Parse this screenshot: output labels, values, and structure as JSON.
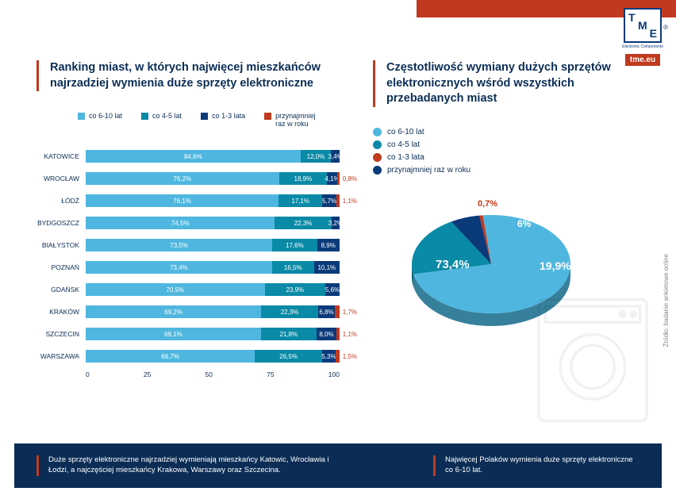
{
  "logo": {
    "letters": [
      "T",
      "M",
      "E"
    ],
    "sub": "Electronic Components",
    "reg": "®",
    "link": "tme.eu"
  },
  "colors": {
    "c610": "#4fb7df",
    "c45": "#0a8aa6",
    "c13": "#0a3a7a",
    "cyr": "#c1391e",
    "title": "#0b2d55",
    "footer_bg": "#0b2d55",
    "grey": "#939393"
  },
  "left": {
    "title": "Ranking miast, w których najwięcej mieszkańców najrzadziej wymienia duże sprzęty elektroniczne",
    "legend": [
      {
        "label": "co 6-10 lat",
        "c": "c610"
      },
      {
        "label": "co 4-5 lat",
        "c": "c45"
      },
      {
        "label": "co 1-3 lata",
        "c": "c13"
      },
      {
        "label": "przynajmniej\nraz w roku",
        "c": "cyr"
      }
    ],
    "rows": [
      {
        "city": "KATOWICE",
        "v": [
          84.6,
          12.0,
          3.4,
          0
        ],
        "extra": ""
      },
      {
        "city": "WROCŁAW",
        "v": [
          76.2,
          18.9,
          4.1,
          0.8
        ],
        "extra": "0,8%"
      },
      {
        "city": "ŁÓDŹ",
        "v": [
          76.1,
          17.1,
          5.7,
          1.1
        ],
        "extra": "1,1%"
      },
      {
        "city": "BYDGOSZCZ",
        "v": [
          74.5,
          22.3,
          3.2,
          0
        ],
        "extra": ""
      },
      {
        "city": "BIAŁYSTOK",
        "v": [
          73.5,
          17.6,
          8.9,
          0
        ],
        "extra": ""
      },
      {
        "city": "POZNAŃ",
        "v": [
          73.4,
          16.5,
          10.1,
          0
        ],
        "extra": ""
      },
      {
        "city": "GDAŃSK",
        "v": [
          70.5,
          23.9,
          5.6,
          0
        ],
        "extra": ""
      },
      {
        "city": "KRAKÓW",
        "v": [
          69.2,
          22.3,
          6.8,
          1.7
        ],
        "extra": "1,7%"
      },
      {
        "city": "SZCZECIN",
        "v": [
          69.1,
          21.8,
          8.0,
          1.1
        ],
        "extra": "1,1%"
      },
      {
        "city": "WARSZAWA",
        "v": [
          66.7,
          26.5,
          5.3,
          1.5
        ],
        "extra": "1,5%"
      }
    ],
    "xaxis": [
      "0",
      "25",
      "50",
      "75",
      "100"
    ]
  },
  "right": {
    "title": "Częstotliwość wymiany dużych sprzętów elektronicznych wśród wszystkich przebadanych miast",
    "legend": [
      {
        "label": "co 6-10 lat",
        "c": "c610"
      },
      {
        "label": "co 4-5 lat",
        "c": "c45"
      },
      {
        "label": "co 1-3 lata",
        "c": "cyr"
      },
      {
        "label": "przynajmniej raz w roku",
        "c": "c13"
      }
    ],
    "pie": {
      "slices": [
        {
          "v": 73.4,
          "c": "c610",
          "label": "73,4%"
        },
        {
          "v": 19.9,
          "c": "c45",
          "label": "19,9%"
        },
        {
          "v": 6.0,
          "c": "c13",
          "label": "6%"
        },
        {
          "v": 0.7,
          "c": "cyr",
          "label": "0,7%"
        }
      ]
    }
  },
  "source": "Źródło: badanie ankietowe online",
  "footer": {
    "left": "Duże sprzęty elektroniczne najrzadziej wymieniają mieszkańcy Katowic, Wrocławia i Łodzi, a najczęściej mieszkańcy Krakowa, Warszawy oraz Szczecina.",
    "right": "Najwięcej Polaków wymienia duże sprzęty elektroniczne co 6-10 lat."
  }
}
